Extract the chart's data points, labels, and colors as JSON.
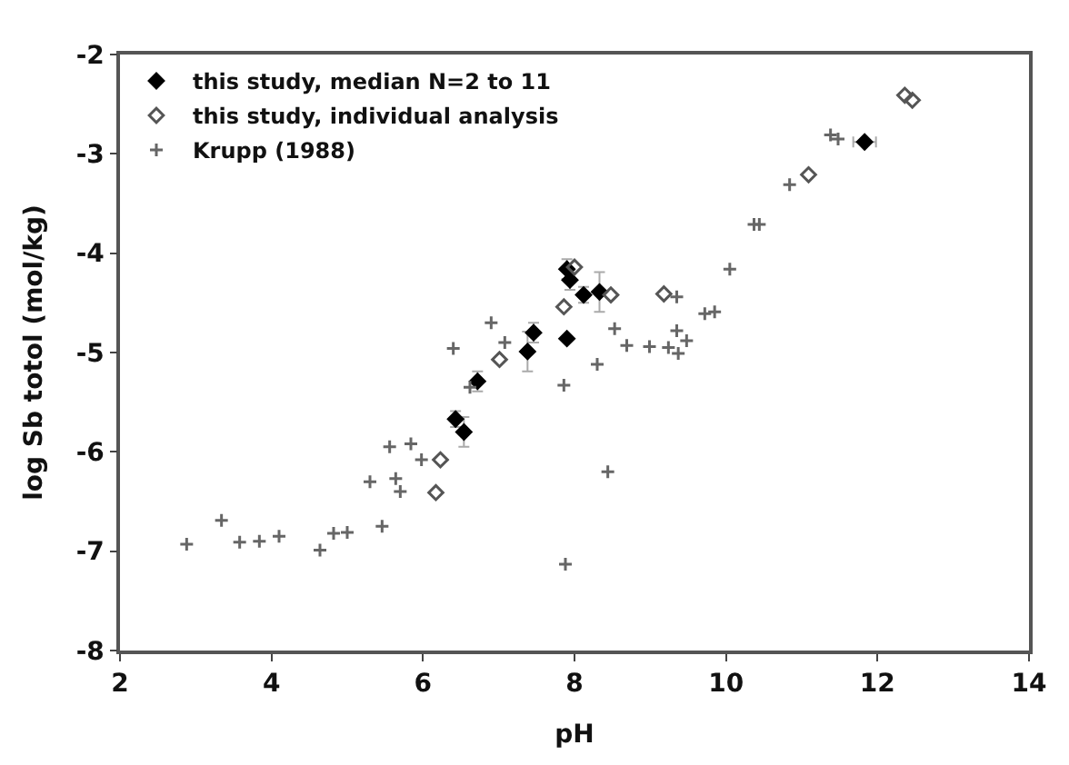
{
  "chart_data": {
    "type": "scatter",
    "xlabel": "pH",
    "ylabel": "log Sb totol (mol/kg)",
    "xlim": [
      2,
      14
    ],
    "ylim": [
      -8,
      -2
    ],
    "xticks": [
      2,
      4,
      6,
      8,
      10,
      12,
      14
    ],
    "yticks": [
      -8,
      -7,
      -6,
      -5,
      -4,
      -3,
      -2
    ],
    "legend": "top left",
    "series": [
      {
        "name": "this study, median N=2 to 11",
        "color": "#000000",
        "marker": "diamond",
        "x": [
          6.43,
          6.54,
          6.72,
          7.38,
          7.46,
          7.9,
          7.94,
          7.9,
          8.12,
          8.33,
          11.83
        ],
        "values": [
          -5.67,
          -5.8,
          -5.29,
          -4.99,
          -4.8,
          -4.16,
          -4.27,
          -4.86,
          -4.42,
          -4.39,
          -2.88
        ],
        "errors": [
          0.08,
          0.15,
          0.1,
          0.2,
          0.1,
          0.1,
          0.1,
          null,
          0.08,
          0.2,
          null
        ],
        "xerrors": [
          null,
          null,
          null,
          null,
          null,
          null,
          null,
          null,
          null,
          null,
          0.15
        ]
      },
      {
        "name": "this study, individual analysis",
        "color": "#555555",
        "marker": "diamond-open",
        "x": [
          6.23,
          6.17,
          7.01,
          7.86,
          8.0,
          8.48,
          9.18,
          11.09,
          12.36,
          12.46
        ],
        "values": [
          -6.08,
          -6.41,
          -5.07,
          -4.54,
          -4.14,
          -4.42,
          -4.41,
          -3.21,
          -2.41,
          -2.46
        ]
      },
      {
        "name": "Krupp (1988)",
        "color": "#666666",
        "marker": "cross",
        "x": [
          2.88,
          3.34,
          3.58,
          3.84,
          4.1,
          4.64,
          4.82,
          5.0,
          5.46,
          5.3,
          5.56,
          5.64,
          5.7,
          5.84,
          5.98,
          6.4,
          6.62,
          6.9,
          7.08,
          7.86,
          7.88,
          8.3,
          8.44,
          8.53,
          8.69,
          8.99,
          9.24,
          9.35,
          9.37,
          9.48,
          9.35,
          9.72,
          9.85,
          10.05,
          10.37,
          10.44,
          10.84,
          11.38,
          11.48
        ],
        "values": [
          -6.93,
          -6.69,
          -6.91,
          -6.9,
          -6.85,
          -6.99,
          -6.82,
          -6.81,
          -6.75,
          -6.3,
          -5.95,
          -6.27,
          -6.4,
          -5.92,
          -6.08,
          -4.96,
          -5.35,
          -4.7,
          -4.9,
          -5.33,
          -7.13,
          -5.12,
          -6.2,
          -4.76,
          -4.93,
          -4.94,
          -4.95,
          -4.78,
          -5.01,
          -4.88,
          -4.44,
          -4.61,
          -4.59,
          -4.16,
          -3.71,
          -3.71,
          -3.31,
          -2.81,
          -2.85
        ]
      }
    ]
  }
}
